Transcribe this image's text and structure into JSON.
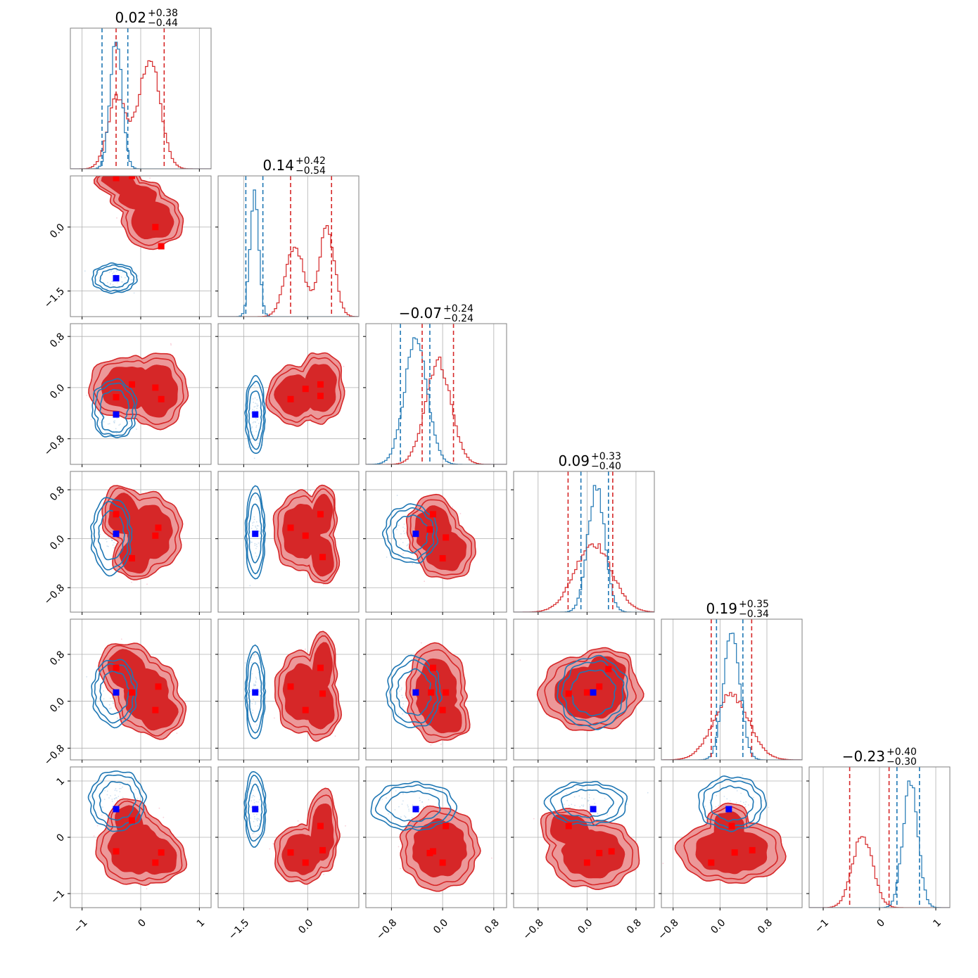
{
  "chart_data": {
    "type": "corner",
    "grid": true,
    "colors": {
      "red": "#d62728",
      "red_light": "#ec9899",
      "blue": "#1f77b4",
      "blue_marker": "#0000ff",
      "red_scatter": "#f4a7b9",
      "blue_scatter": "#a9cbe6",
      "grid": "#b0b0b0"
    },
    "params": [
      {
        "title_value": "0.02",
        "title_plus": "+0.38",
        "title_minus": "−0.44",
        "range": [
          -1.2,
          1.2
        ],
        "ticks": [
          -1,
          0,
          1
        ],
        "tick_labels": [
          "−1",
          "0",
          "1"
        ],
        "red_quantiles": [
          -0.42,
          0.4
        ],
        "blue_quantiles": [
          -0.66,
          -0.22
        ],
        "red_hist_peaks": [
          [
            -0.4,
            0.16,
            0.55
          ],
          [
            0.15,
            0.18,
            0.85
          ]
        ],
        "blue_hist_peaks": [
          [
            -0.42,
            0.1,
            1.0
          ]
        ]
      },
      {
        "title_value": "0.14",
        "title_plus": "+0.42",
        "title_minus": "−0.54",
        "range": [
          -2.1,
          1.2
        ],
        "ticks": [
          -1.5,
          0.0
        ],
        "tick_labels": [
          "−1.5",
          "0.0"
        ],
        "red_quantiles": [
          -0.4,
          0.56
        ],
        "blue_quantiles": [
          -1.45,
          -1.05
        ],
        "red_hist_peaks": [
          [
            -0.3,
            0.22,
            0.55
          ],
          [
            0.45,
            0.18,
            0.7
          ]
        ],
        "blue_hist_peaks": [
          [
            -1.25,
            0.1,
            1.0
          ]
        ]
      },
      {
        "title_value": "−0.07",
        "title_plus": "+0.24",
        "title_minus": "−0.24",
        "range": [
          -1.2,
          1.0
        ],
        "ticks": [
          -0.8,
          0.0,
          0.8
        ],
        "tick_labels": [
          "−0.8",
          "0.0",
          "0.8"
        ],
        "red_quantiles": [
          -0.32,
          0.17
        ],
        "blue_quantiles": [
          -0.66,
          -0.2
        ],
        "red_hist_peaks": [
          [
            -0.07,
            0.2,
            0.85
          ]
        ],
        "blue_hist_peaks": [
          [
            -0.42,
            0.18,
            1.0
          ]
        ]
      },
      {
        "title_value": "0.09",
        "title_plus": "+0.33",
        "title_minus": "−0.40",
        "range": [
          -1.2,
          1.1
        ],
        "ticks": [
          -0.8,
          0.0,
          0.8
        ],
        "tick_labels": [
          "−0.8",
          "0.0",
          "0.8"
        ],
        "red_quantiles": [
          -0.31,
          0.42
        ],
        "blue_quantiles": [
          -0.1,
          0.35
        ],
        "red_hist_peaks": [
          [
            0.1,
            0.3,
            0.55
          ]
        ],
        "blue_hist_peaks": [
          [
            0.15,
            0.14,
            1.0
          ]
        ]
      },
      {
        "title_value": "0.19",
        "title_plus": "+0.35",
        "title_minus": "−0.34",
        "range": [
          -1.0,
          1.4
        ],
        "ticks": [
          -0.8,
          0.0,
          0.8
        ],
        "tick_labels": [
          "−0.8",
          "0.0",
          "0.8"
        ],
        "red_quantiles": [
          -0.15,
          0.54
        ],
        "blue_quantiles": [
          -0.06,
          0.39
        ],
        "red_hist_peaks": [
          [
            0.19,
            0.3,
            0.5
          ]
        ],
        "blue_hist_peaks": [
          [
            0.2,
            0.14,
            1.0
          ]
        ]
      },
      {
        "title_value": "−0.23",
        "title_plus": "+0.40",
        "title_minus": "−0.30",
        "range": [
          -1.25,
          1.25
        ],
        "ticks": [
          -1,
          0,
          1
        ],
        "tick_labels": [
          "−1",
          "0",
          "1"
        ],
        "red_quantiles": [
          -0.53,
          0.17
        ],
        "blue_quantiles": [
          0.31,
          0.71
        ],
        "red_hist_peaks": [
          [
            -0.3,
            0.18,
            0.55
          ]
        ],
        "blue_hist_peaks": [
          [
            0.55,
            0.13,
            1.0
          ]
        ]
      }
    ],
    "panels": [
      {
        "row": 1,
        "col": 0,
        "red_markers": [
          [
            -0.42,
            1.15
          ],
          [
            -0.15,
            1.2
          ],
          [
            0.25,
            0.0
          ],
          [
            0.35,
            -0.45
          ]
        ],
        "blue_markers": [
          [
            -0.42,
            -1.2
          ]
        ],
        "red_shape": [
          [
            -0.4,
            1.1,
            0.22,
            0.16
          ],
          [
            0.2,
            0.15,
            0.28,
            0.35
          ],
          [
            -0.05,
            0.7,
            0.25,
            0.22
          ]
        ],
        "blue_shape": [
          [
            -0.45,
            -1.2,
            0.2,
            0.18
          ]
        ]
      },
      {
        "row": 2,
        "col": 0,
        "red_markers": [
          [
            -0.42,
            -0.15
          ],
          [
            -0.15,
            0.05
          ],
          [
            0.25,
            0.0
          ],
          [
            0.35,
            -0.18
          ]
        ],
        "blue_markers": [
          [
            -0.42,
            -0.42
          ]
        ],
        "red_shape": [
          [
            -0.2,
            0.0,
            0.38,
            0.26
          ],
          [
            0.28,
            -0.05,
            0.27,
            0.32
          ]
        ],
        "blue_shape": [
          [
            -0.45,
            -0.3,
            0.2,
            0.22
          ],
          [
            -0.45,
            -0.55,
            0.18,
            0.12
          ]
        ]
      },
      {
        "row": 2,
        "col": 1,
        "red_markers": [
          [
            -0.4,
            -0.18
          ],
          [
            -0.05,
            -0.02
          ],
          [
            0.3,
            0.05
          ],
          [
            0.3,
            -0.13
          ]
        ],
        "blue_markers": [
          [
            -1.23,
            -0.42
          ]
        ],
        "red_shape": [
          [
            -0.3,
            -0.12,
            0.35,
            0.25
          ],
          [
            0.3,
            0.0,
            0.3,
            0.3
          ]
        ],
        "blue_shape": [
          [
            -1.23,
            -0.42,
            0.12,
            0.32
          ]
        ]
      },
      {
        "row": 3,
        "col": 0,
        "red_markers": [
          [
            -0.42,
            0.4
          ],
          [
            -0.15,
            -0.32
          ],
          [
            0.25,
            0.05
          ],
          [
            0.3,
            0.18
          ]
        ],
        "blue_markers": [
          [
            -0.42,
            0.08
          ]
        ],
        "red_shape": [
          [
            -0.3,
            0.4,
            0.2,
            0.25
          ],
          [
            0.15,
            0.1,
            0.3,
            0.35
          ],
          [
            -0.1,
            -0.3,
            0.2,
            0.2
          ]
        ],
        "blue_shape": [
          [
            -0.5,
            0.05,
            0.18,
            0.33
          ]
        ]
      },
      {
        "row": 3,
        "col": 1,
        "red_markers": [
          [
            -0.4,
            0.18
          ],
          [
            -0.05,
            0.05
          ],
          [
            0.3,
            0.4
          ],
          [
            0.35,
            -0.3
          ]
        ],
        "blue_markers": [
          [
            -1.23,
            0.08
          ]
        ],
        "red_shape": [
          [
            -0.15,
            0.12,
            0.35,
            0.35
          ],
          [
            0.35,
            0.4,
            0.18,
            0.25
          ],
          [
            0.35,
            -0.3,
            0.2,
            0.25
          ]
        ],
        "blue_shape": [
          [
            -1.23,
            0.08,
            0.12,
            0.4
          ]
        ]
      },
      {
        "row": 3,
        "col": 2,
        "red_markers": [
          [
            -0.15,
            0.4
          ],
          [
            -0.2,
            0.15
          ],
          [
            0.0,
            -0.32
          ],
          [
            0.05,
            0.02
          ]
        ],
        "blue_markers": [
          [
            -0.42,
            0.08
          ]
        ],
        "red_shape": [
          [
            -0.15,
            0.15,
            0.22,
            0.3
          ],
          [
            0.05,
            -0.2,
            0.25,
            0.25
          ]
        ],
        "blue_shape": [
          [
            -0.5,
            0.08,
            0.22,
            0.25
          ]
        ]
      },
      {
        "row": 4,
        "col": 0,
        "red_markers": [
          [
            -0.42,
            0.57
          ],
          [
            -0.15,
            0.15
          ],
          [
            0.3,
            0.25
          ],
          [
            0.25,
            -0.15
          ]
        ],
        "blue_markers": [
          [
            -0.42,
            0.15
          ]
        ],
        "red_shape": [
          [
            -0.25,
            0.55,
            0.25,
            0.25
          ],
          [
            0.1,
            0.1,
            0.3,
            0.35
          ],
          [
            0.3,
            -0.2,
            0.25,
            0.22
          ]
        ],
        "blue_shape": [
          [
            -0.45,
            0.15,
            0.2,
            0.3
          ]
        ]
      },
      {
        "row": 4,
        "col": 1,
        "red_markers": [
          [
            -0.4,
            0.25
          ],
          [
            -0.05,
            -0.15
          ],
          [
            0.3,
            0.57
          ],
          [
            0.35,
            0.13
          ]
        ],
        "blue_markers": [
          [
            -1.23,
            0.15
          ]
        ],
        "red_shape": [
          [
            -0.15,
            0.15,
            0.33,
            0.38
          ],
          [
            0.35,
            0.6,
            0.18,
            0.3
          ],
          [
            0.3,
            -0.1,
            0.25,
            0.3
          ]
        ],
        "blue_shape": [
          [
            -1.23,
            0.15,
            0.12,
            0.42
          ]
        ]
      },
      {
        "row": 4,
        "col": 2,
        "red_markers": [
          [
            -0.15,
            0.57
          ],
          [
            -0.18,
            0.15
          ],
          [
            0.05,
            0.15
          ],
          [
            0.0,
            -0.15
          ]
        ],
        "blue_markers": [
          [
            -0.42,
            0.15
          ]
        ],
        "red_shape": [
          [
            -0.1,
            0.15,
            0.25,
            0.45
          ],
          [
            0.05,
            -0.3,
            0.2,
            0.2
          ]
        ],
        "blue_shape": [
          [
            -0.45,
            0.15,
            0.22,
            0.32
          ]
        ]
      },
      {
        "row": 4,
        "col": 3,
        "red_markers": [
          [
            -0.3,
            0.13
          ],
          [
            0.0,
            0.15
          ],
          [
            0.2,
            0.25
          ],
          [
            0.35,
            0.55
          ]
        ],
        "blue_markers": [
          [
            0.1,
            0.15
          ]
        ],
        "red_shape": [
          [
            0.05,
            0.15,
            0.45,
            0.35
          ],
          [
            0.3,
            0.45,
            0.25,
            0.25
          ]
        ],
        "blue_shape": [
          [
            0.1,
            0.15,
            0.3,
            0.32
          ]
        ]
      },
      {
        "row": 5,
        "col": 0,
        "red_markers": [
          [
            -0.42,
            -0.25
          ],
          [
            -0.15,
            0.3
          ],
          [
            0.25,
            -0.45
          ],
          [
            0.35,
            -0.27
          ]
        ],
        "blue_markers": [
          [
            -0.42,
            0.5
          ]
        ],
        "red_shape": [
          [
            -0.1,
            -0.2,
            0.35,
            0.35
          ],
          [
            0.3,
            -0.35,
            0.25,
            0.25
          ],
          [
            -0.2,
            0.25,
            0.18,
            0.25
          ]
        ],
        "blue_shape": [
          [
            -0.4,
            0.65,
            0.25,
            0.28
          ]
        ]
      },
      {
        "row": 5,
        "col": 1,
        "red_markers": [
          [
            -0.4,
            -0.27
          ],
          [
            -0.05,
            -0.45
          ],
          [
            0.3,
            0.2
          ],
          [
            0.35,
            -0.23
          ]
        ],
        "blue_markers": [
          [
            -1.23,
            0.5
          ]
        ],
        "red_shape": [
          [
            -0.15,
            -0.3,
            0.35,
            0.28
          ],
          [
            0.35,
            0.1,
            0.2,
            0.4
          ]
        ],
        "blue_shape": [
          [
            -1.23,
            0.5,
            0.13,
            0.35
          ]
        ]
      },
      {
        "row": 5,
        "col": 2,
        "red_markers": [
          [
            -0.15,
            -0.25
          ],
          [
            -0.2,
            -0.28
          ],
          [
            0.05,
            0.2
          ],
          [
            0.0,
            -0.45
          ]
        ],
        "blue_markers": [
          [
            -0.42,
            0.5
          ]
        ],
        "red_shape": [
          [
            -0.05,
            -0.2,
            0.33,
            0.4
          ]
        ],
        "blue_shape": [
          [
            -0.45,
            0.55,
            0.35,
            0.22
          ]
        ]
      },
      {
        "row": 5,
        "col": 3,
        "red_markers": [
          [
            -0.3,
            0.2
          ],
          [
            0.0,
            -0.45
          ],
          [
            0.2,
            -0.28
          ],
          [
            0.4,
            -0.25
          ]
        ],
        "blue_markers": [
          [
            0.1,
            0.5
          ]
        ],
        "red_shape": [
          [
            0.1,
            -0.3,
            0.4,
            0.33
          ],
          [
            -0.3,
            0.15,
            0.25,
            0.2
          ]
        ],
        "blue_shape": [
          [
            0.0,
            0.6,
            0.35,
            0.2
          ]
        ]
      },
      {
        "row": 5,
        "col": 4,
        "red_markers": [
          [
            -0.15,
            -0.45
          ],
          [
            0.2,
            0.2
          ],
          [
            0.25,
            -0.27
          ],
          [
            0.55,
            -0.23
          ]
        ],
        "blue_markers": [
          [
            0.15,
            0.5
          ]
        ],
        "red_shape": [
          [
            0.2,
            -0.25,
            0.5,
            0.3
          ],
          [
            0.15,
            0.15,
            0.2,
            0.25
          ]
        ],
        "blue_shape": [
          [
            0.2,
            0.6,
            0.3,
            0.25
          ]
        ]
      }
    ]
  }
}
